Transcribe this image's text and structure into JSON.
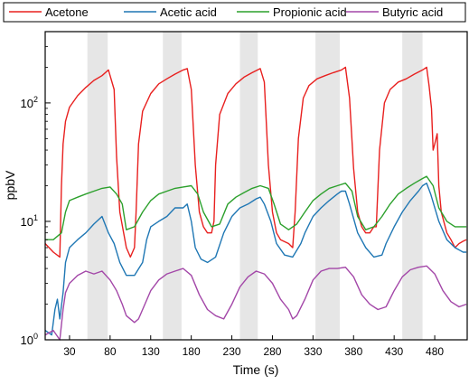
{
  "chart_data": {
    "type": "line",
    "xlabel": "Time (s)",
    "ylabel": "ppbV",
    "xlim": [
      0,
      520
    ],
    "ylim": [
      1,
      400
    ],
    "yscale": "log",
    "x_ticks": [
      30,
      80,
      130,
      180,
      230,
      280,
      330,
      380,
      430,
      480
    ],
    "y_ticks": [
      {
        "value": 1,
        "label": "10",
        "sup": "0"
      },
      {
        "value": 10,
        "label": "10",
        "sup": "1"
      },
      {
        "value": 100,
        "label": "10",
        "sup": "2"
      }
    ],
    "grid": false,
    "legend_position": "top",
    "shaded_regions": [
      [
        52,
        77
      ],
      [
        145,
        168
      ],
      [
        240,
        262
      ],
      [
        333,
        363
      ],
      [
        440,
        465
      ]
    ],
    "series": [
      {
        "name": "Acetone",
        "color": "#e8201f",
        "x": [
          0,
          10,
          18,
          20,
          22,
          25,
          30,
          40,
          50,
          60,
          70,
          78,
          85,
          88,
          92,
          100,
          105,
          110,
          112,
          115,
          120,
          130,
          140,
          150,
          160,
          170,
          175,
          180,
          185,
          190,
          195,
          200,
          205,
          208,
          210,
          215,
          225,
          235,
          245,
          255,
          265,
          270,
          275,
          280,
          285,
          290,
          300,
          305,
          308,
          312,
          318,
          325,
          335,
          345,
          355,
          365,
          370,
          375,
          380,
          385,
          390,
          395,
          400,
          405,
          408,
          412,
          418,
          425,
          435,
          445,
          455,
          465,
          470,
          473,
          476,
          478,
          480,
          483,
          485,
          488,
          495,
          500,
          505,
          510,
          515,
          519
        ],
        "y": [
          6.5,
          5.5,
          5,
          20,
          45,
          70,
          92,
          115,
          135,
          155,
          170,
          190,
          130,
          35,
          12,
          6,
          5,
          6,
          12,
          45,
          85,
          120,
          145,
          160,
          175,
          190,
          195,
          130,
          30,
          12,
          9,
          8,
          8,
          10,
          30,
          80,
          120,
          145,
          165,
          180,
          195,
          150,
          30,
          12,
          8,
          7,
          6.5,
          6,
          12,
          50,
          110,
          140,
          160,
          170,
          180,
          190,
          200,
          110,
          28,
          12,
          9,
          8,
          8,
          9,
          9,
          40,
          100,
          130,
          150,
          160,
          175,
          190,
          200,
          140,
          90,
          40,
          45,
          55,
          20,
          12,
          8,
          7,
          6,
          6.5,
          6.8,
          7
        ]
      },
      {
        "name": "Acetic acid",
        "color": "#1f77b4",
        "x": [
          0,
          8,
          12,
          15,
          18,
          22,
          25,
          30,
          40,
          50,
          60,
          70,
          78,
          85,
          92,
          100,
          110,
          120,
          125,
          130,
          140,
          150,
          160,
          170,
          175,
          180,
          185,
          192,
          200,
          210,
          220,
          230,
          240,
          250,
          260,
          265,
          270,
          278,
          285,
          295,
          305,
          315,
          320,
          330,
          340,
          350,
          360,
          365,
          370,
          375,
          385,
          395,
          405,
          415,
          420,
          430,
          440,
          450,
          460,
          465,
          470,
          475,
          485,
          495,
          505,
          515,
          519
        ],
        "y": [
          1.2,
          1.1,
          1.8,
          2.2,
          1.5,
          2.5,
          4.5,
          6,
          7,
          8,
          9.5,
          11,
          8,
          6.5,
          4.5,
          3.5,
          3.5,
          4.5,
          7,
          9,
          10,
          11,
          13,
          13,
          14,
          10,
          6,
          4.8,
          4.5,
          5,
          8,
          11,
          13,
          14,
          15.5,
          16,
          14,
          10,
          6.5,
          5.2,
          5,
          6.5,
          8,
          11,
          13,
          15,
          17,
          18,
          18,
          14,
          8,
          6,
          5,
          5.2,
          6.5,
          9,
          12,
          15,
          18,
          20,
          21,
          17,
          10,
          7,
          6,
          5.5,
          5.5
        ]
      },
      {
        "name": "Propionic acid",
        "color": "#2ca02c",
        "x": [
          0,
          10,
          20,
          25,
          30,
          40,
          50,
          60,
          70,
          80,
          88,
          95,
          100,
          110,
          120,
          130,
          140,
          150,
          160,
          170,
          180,
          188,
          195,
          205,
          215,
          225,
          235,
          245,
          255,
          265,
          275,
          282,
          290,
          300,
          310,
          320,
          330,
          340,
          350,
          360,
          370,
          378,
          385,
          395,
          405,
          415,
          425,
          435,
          445,
          455,
          465,
          470,
          478,
          485,
          495,
          505,
          515,
          519
        ],
        "y": [
          7,
          7,
          8,
          12,
          15,
          16,
          17,
          18,
          19,
          19.5,
          17,
          14,
          8.5,
          9,
          12,
          15,
          17,
          18,
          19,
          19.5,
          20,
          17,
          12,
          9,
          9.5,
          14,
          16,
          17.5,
          19,
          20,
          19,
          14,
          9.5,
          8.5,
          9.5,
          12,
          15,
          17,
          19,
          20,
          21,
          18,
          11,
          8.5,
          9,
          11,
          14,
          17,
          19,
          21,
          23,
          24,
          20,
          13,
          10,
          9,
          9,
          9
        ]
      },
      {
        "name": "Butyric acid",
        "color": "#a347a8",
        "x": [
          0,
          10,
          18,
          22,
          25,
          30,
          40,
          50,
          60,
          70,
          80,
          88,
          95,
          100,
          110,
          115,
          120,
          130,
          140,
          150,
          160,
          170,
          180,
          190,
          200,
          210,
          220,
          230,
          240,
          250,
          260,
          270,
          280,
          290,
          300,
          305,
          310,
          320,
          330,
          340,
          350,
          360,
          370,
          380,
          390,
          400,
          410,
          420,
          430,
          440,
          450,
          460,
          470,
          480,
          490,
          500,
          510,
          519
        ],
        "y": [
          1.1,
          1.2,
          1.0,
          1.8,
          2.5,
          3.0,
          3.5,
          3.8,
          3.6,
          3.8,
          3.2,
          2.6,
          2.0,
          1.6,
          1.4,
          1.5,
          1.8,
          2.6,
          3.2,
          3.6,
          3.8,
          4.0,
          3.5,
          2.4,
          1.8,
          1.6,
          1.5,
          2.0,
          2.8,
          3.4,
          3.8,
          3.6,
          3.0,
          2.2,
          1.8,
          1.5,
          1.6,
          2.2,
          3.2,
          3.8,
          4.0,
          4.0,
          4.1,
          3.4,
          2.4,
          2.0,
          1.8,
          1.9,
          2.6,
          3.4,
          3.9,
          4.1,
          4.2,
          3.6,
          2.6,
          2.1,
          1.9,
          2.0
        ]
      }
    ]
  }
}
